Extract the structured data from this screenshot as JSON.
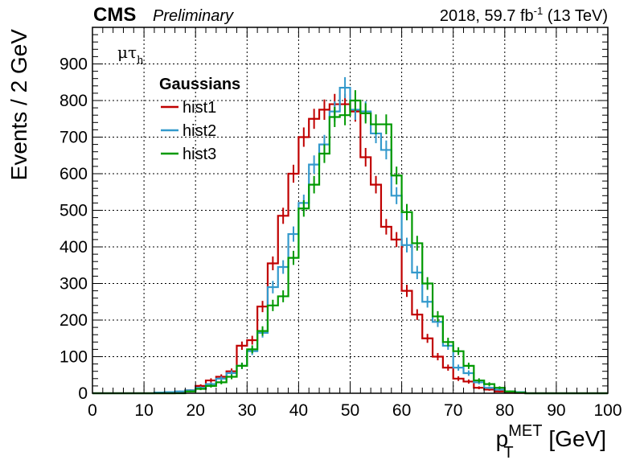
{
  "header": {
    "experiment": "CMS",
    "status": "Preliminary",
    "lumi_prefix": "2018, 59.7 fb",
    "lumi_exp": "-1",
    "lumi_suffix": " (13 TeV)"
  },
  "channel": {
    "main": "μτ",
    "sub": "h"
  },
  "legend": {
    "title": "Gaussians"
  },
  "chart_data": {
    "type": "line",
    "histogram": true,
    "xlabel_main": "p",
    "xlabel_sub": "T",
    "xlabel_sup": "MET",
    "xlabel_unit": " [GeV]",
    "ylabel": "Events / 2 GeV",
    "xlim": [
      0,
      100
    ],
    "ylim": [
      0,
      1000
    ],
    "bin_width": 2,
    "grid": true,
    "legend_position": "top-left",
    "xticks": [
      0,
      10,
      20,
      30,
      40,
      50,
      60,
      70,
      80,
      90,
      100
    ],
    "yticks": [
      0,
      100,
      200,
      300,
      400,
      500,
      600,
      700,
      800,
      900
    ],
    "x": [
      1,
      3,
      5,
      7,
      9,
      11,
      13,
      15,
      17,
      19,
      21,
      23,
      25,
      27,
      29,
      31,
      33,
      35,
      37,
      39,
      41,
      43,
      45,
      47,
      49,
      51,
      53,
      55,
      57,
      59,
      61,
      63,
      65,
      67,
      69,
      71,
      73,
      75,
      77,
      79,
      81,
      83,
      85,
      87,
      89,
      91,
      93,
      95,
      97,
      99
    ],
    "series": [
      {
        "name": "hist1",
        "color": "#c00000",
        "values": [
          0,
          0,
          0,
          0,
          0,
          0,
          0,
          0,
          2,
          8,
          20,
          35,
          45,
          60,
          130,
          145,
          237,
          355,
          485,
          600,
          700,
          750,
          775,
          790,
          790,
          770,
          645,
          570,
          455,
          420,
          280,
          215,
          150,
          100,
          70,
          40,
          32,
          15,
          10,
          5,
          3,
          1,
          0,
          0,
          0,
          0,
          0,
          0,
          0,
          0
        ]
      },
      {
        "name": "hist2",
        "color": "#3399cc",
        "values": [
          0,
          0,
          0,
          0,
          0,
          0,
          2,
          3,
          5,
          8,
          15,
          25,
          40,
          55,
          75,
          115,
          165,
          290,
          345,
          435,
          520,
          625,
          680,
          770,
          835,
          775,
          770,
          710,
          665,
          540,
          405,
          330,
          250,
          195,
          130,
          70,
          55,
          30,
          15,
          10,
          5,
          3,
          0,
          0,
          0,
          0,
          0,
          0,
          0,
          0
        ]
      },
      {
        "name": "hist3",
        "color": "#009900",
        "values": [
          0,
          0,
          0,
          0,
          0,
          0,
          0,
          0,
          0,
          5,
          12,
          20,
          30,
          45,
          75,
          120,
          170,
          240,
          265,
          370,
          505,
          570,
          655,
          755,
          760,
          800,
          765,
          735,
          735,
          595,
          495,
          410,
          300,
          210,
          140,
          115,
          75,
          35,
          25,
          15,
          5,
          2,
          0,
          0,
          0,
          0,
          0,
          0,
          0,
          0
        ]
      }
    ]
  }
}
